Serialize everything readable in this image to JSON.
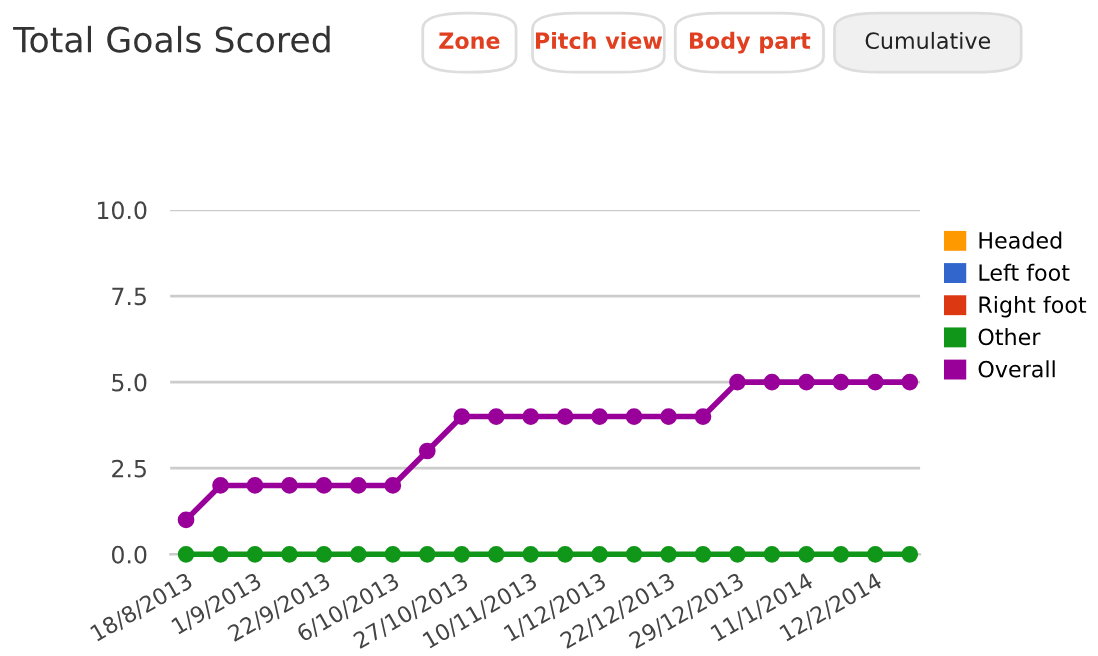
{
  "chart_data": {
    "type": "line",
    "title": "Total Goals Scored",
    "annotations": [
      "Zone",
      "Pitch view",
      "Body part",
      "Cumulative"
    ],
    "categories": [
      "18/8/2013",
      null,
      "1/9/2013",
      null,
      "22/9/2013",
      null,
      "6/10/2013",
      null,
      "27/10/2013",
      null,
      "10/11/2013",
      null,
      "1/12/2013",
      null,
      "22/12/2013",
      null,
      "29/12/2013",
      null,
      "11/1/2014",
      null,
      "12/2/2014",
      null
    ],
    "series": [
      {
        "name": "Headed",
        "color": "#ff9900",
        "values": [
          null,
          null,
          null,
          null,
          null,
          null,
          null,
          null,
          null,
          null,
          null,
          null,
          null,
          null,
          null,
          null,
          null,
          null,
          null,
          null,
          null,
          null
        ]
      },
      {
        "name": "Left foot",
        "color": "#3366cc",
        "values": [
          null,
          null,
          null,
          null,
          null,
          null,
          null,
          null,
          null,
          null,
          null,
          null,
          null,
          null,
          null,
          null,
          null,
          null,
          null,
          null,
          null,
          null
        ]
      },
      {
        "name": "Right foot",
        "color": "#dc3912",
        "values": [
          null,
          null,
          null,
          null,
          null,
          null,
          null,
          null,
          null,
          null,
          null,
          null,
          null,
          null,
          null,
          null,
          null,
          null,
          null,
          null,
          null,
          null
        ]
      },
      {
        "name": "Other",
        "color": "#109618",
        "values": [
          0,
          0,
          0,
          0,
          0,
          0,
          0,
          0,
          0,
          0,
          0,
          0,
          0,
          0,
          0,
          0,
          0,
          0,
          0,
          0,
          0,
          0
        ]
      },
      {
        "name": "Overall",
        "color": "#990099",
        "values": [
          1,
          2,
          2,
          2,
          2,
          2,
          2,
          3,
          4,
          4,
          4,
          4,
          4,
          4,
          4,
          4,
          5,
          5,
          5,
          5,
          5,
          5
        ]
      }
    ],
    "ylim": [
      0,
      10
    ],
    "yticks": [
      {
        "value": 0,
        "label": "0.0"
      },
      {
        "value": 2.5,
        "label": "2.5"
      },
      {
        "value": 5,
        "label": "5.0"
      },
      {
        "value": 7.5,
        "label": "7.5"
      },
      {
        "value": 10,
        "label": "10.0"
      }
    ],
    "grid": "y",
    "legend": "right",
    "marker": "circle",
    "line_style": "solid"
  }
}
